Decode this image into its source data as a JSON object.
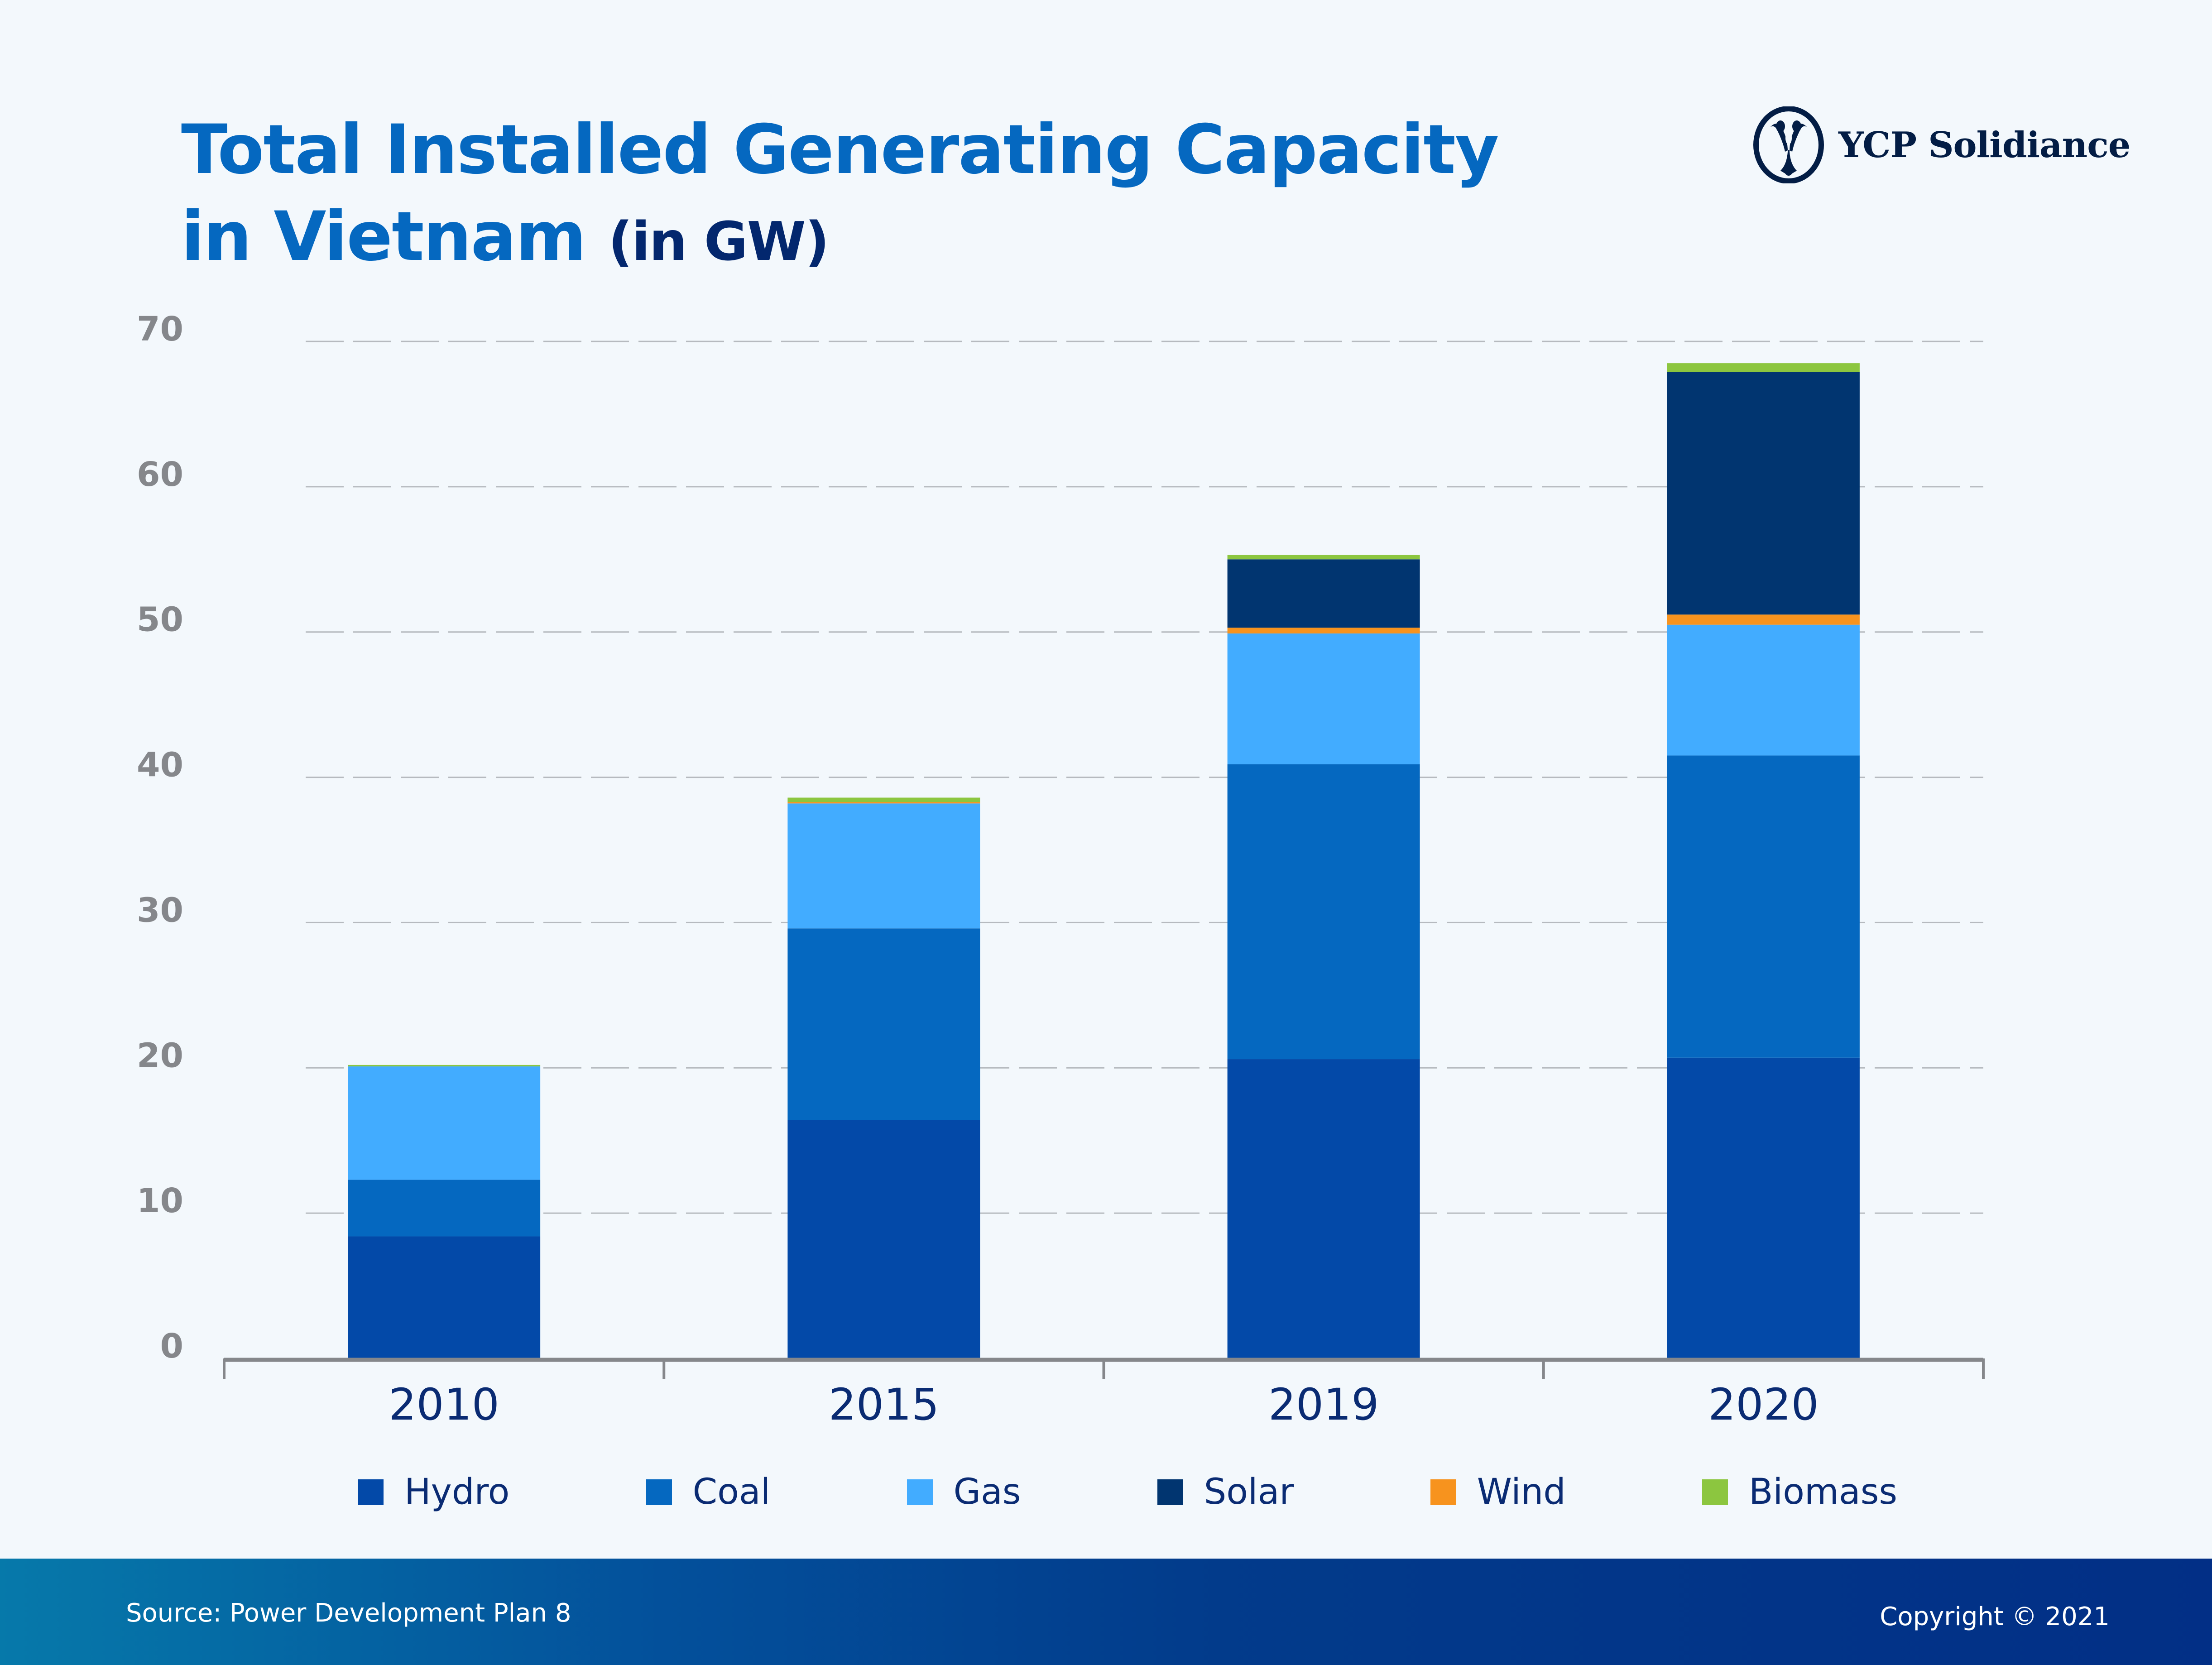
{
  "header": {
    "title_line1": "Total Installed Generating Capacity",
    "title_line2": "in Vietnam",
    "title_unit": "(in GW)"
  },
  "logo": {
    "icon": "ycp-emblem-icon",
    "text": "YCP Solidiance"
  },
  "footer": {
    "source": "Source: Power Development Plan 8",
    "copyright": "Copyright © 2021"
  },
  "chart_data": {
    "type": "bar",
    "stacked": true,
    "title": "Total Installed Generating Capacity in Vietnam (in GW)",
    "xlabel": "",
    "ylabel": "",
    "categories": [
      "2010",
      "2015",
      "2019",
      "2020"
    ],
    "ylim": [
      0,
      70
    ],
    "yticks": [
      0,
      10,
      20,
      30,
      40,
      50,
      60,
      70
    ],
    "grid": true,
    "legend_position": "bottom",
    "series": [
      {
        "name": "Hydro",
        "color": "#0349a8",
        "values": [
          8.4,
          16.4,
          20.6,
          20.7
        ]
      },
      {
        "name": "Coal",
        "color": "#0568c0",
        "values": [
          3.9,
          13.2,
          20.3,
          20.8
        ]
      },
      {
        "name": "Gas",
        "color": "#42acff",
        "values": [
          7.8,
          8.6,
          9.0,
          9.0
        ]
      },
      {
        "name": "Solar",
        "color": "#013570",
        "values": [
          0,
          0,
          4.7,
          16.7
        ]
      },
      {
        "name": "Wind",
        "color": "#f7931e",
        "values": [
          0,
          0.1,
          0.4,
          0.7
        ]
      },
      {
        "name": "Biomass",
        "color": "#8cc63f",
        "values": [
          0.1,
          0.3,
          0.3,
          0.6
        ]
      }
    ],
    "stack_order": [
      "Hydro",
      "Coal",
      "Gas",
      "Wind",
      "Solar",
      "Biomass"
    ]
  }
}
